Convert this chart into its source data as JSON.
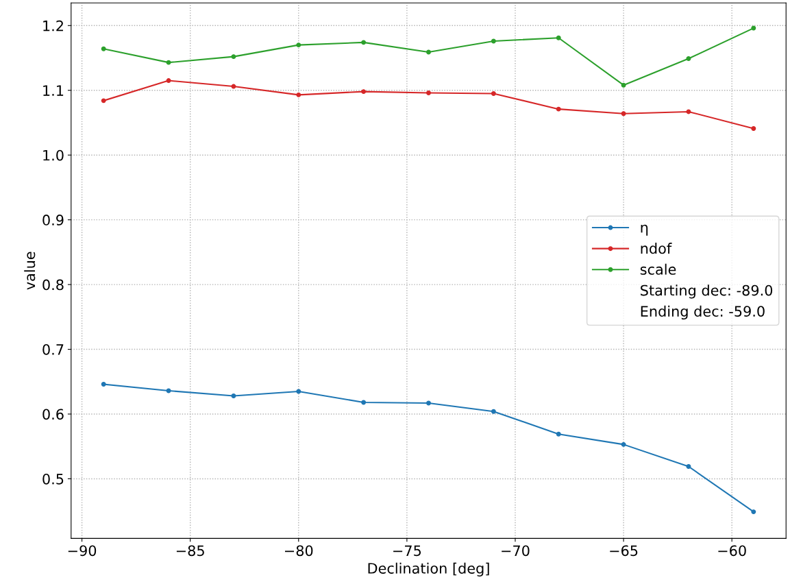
{
  "chart_data": {
    "type": "line",
    "xlabel": "Declination [deg]",
    "ylabel": "value",
    "x": [
      -89,
      -86,
      -83,
      -80,
      -77,
      -74,
      -71,
      -68,
      -65,
      -62,
      -59
    ],
    "series": [
      {
        "name": "η",
        "color": "#1f77b4",
        "values": [
          0.646,
          0.636,
          0.628,
          0.635,
          0.618,
          0.617,
          0.604,
          0.569,
          0.553,
          0.519,
          0.449
        ]
      },
      {
        "name": "ndof",
        "color": "#d62728",
        "values": [
          1.084,
          1.115,
          1.106,
          1.093,
          1.098,
          1.096,
          1.095,
          1.071,
          1.064,
          1.067,
          1.041
        ]
      },
      {
        "name": "scale",
        "color": "#2ca02c",
        "values": [
          1.164,
          1.143,
          1.152,
          1.17,
          1.174,
          1.159,
          1.176,
          1.181,
          1.108,
          1.149,
          1.196
        ]
      }
    ],
    "annotations": [
      "Starting dec: -89.0",
      "Ending dec: -59.0"
    ],
    "xlim": [
      -90.5,
      -57.5
    ],
    "ylim": [
      0.408,
      1.235
    ],
    "xticks": [
      {
        "value": -90,
        "label": "−90"
      },
      {
        "value": -85,
        "label": "−85"
      },
      {
        "value": -80,
        "label": "−80"
      },
      {
        "value": -75,
        "label": "−75"
      },
      {
        "value": -70,
        "label": "−70"
      },
      {
        "value": -65,
        "label": "−65"
      },
      {
        "value": -60,
        "label": "−60"
      }
    ],
    "yticks": [
      0.5,
      0.6,
      0.7,
      0.8,
      0.9,
      {
        "value": 1.0,
        "label": "1.0"
      },
      1.1,
      1.2
    ],
    "grid": true,
    "legend": "center right",
    "marker": "circle",
    "line_style": "solid"
  }
}
